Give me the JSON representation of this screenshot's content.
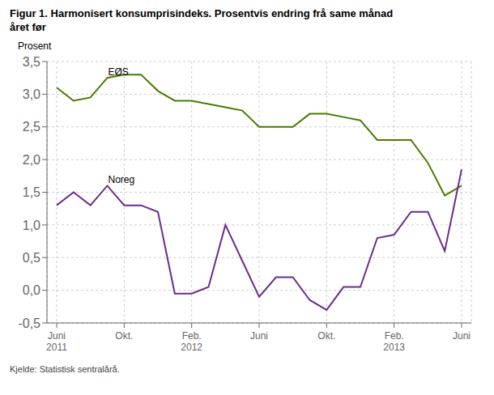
{
  "chart_data": {
    "type": "line",
    "title": "Figur 1. Harmonisert konsumprisindeks. Prosentvis endring frå same månad\nåret før",
    "y_label": "Prosent",
    "source": "Kjelde: Statistisk sentralårå.",
    "categories": [
      "Juni\n2011",
      null,
      null,
      null,
      "Okt.",
      null,
      null,
      null,
      "Feb.\n2012",
      null,
      null,
      null,
      "Juni",
      null,
      null,
      null,
      "Okt.",
      null,
      null,
      null,
      "Feb.\n2013",
      null,
      null,
      null,
      "Juni"
    ],
    "series": [
      {
        "color": "#4a7a00",
        "values": [
          3.1,
          2.9,
          2.95,
          3.25,
          3.3,
          3.3,
          3.05,
          2.9,
          2.9,
          2.85,
          2.8,
          2.75,
          2.5,
          2.5,
          2.5,
          2.7,
          2.7,
          2.65,
          2.6,
          2.3,
          2.3,
          2.3,
          1.95,
          1.45,
          1.6
        ]
      },
      {
        "color": "#6b2d8b",
        "values": [
          1.3,
          1.5,
          1.3,
          1.6,
          1.3,
          1.3,
          1.2,
          -0.05,
          -0.05,
          0.05,
          1.0,
          0.45,
          -0.1,
          0.2,
          0.2,
          -0.15,
          -0.3,
          0.05,
          0.05,
          0.8,
          0.85,
          1.2,
          1.2,
          0.6,
          1.85
        ]
      }
    ],
    "annotations": [
      {
        "text": "EØS",
        "x": 3,
        "y": 3.34
      },
      {
        "text": "Noreg",
        "x": 3,
        "y": 1.69
      }
    ],
    "ylim": [
      -0.5,
      3.5
    ],
    "yticks": [
      {
        "value": -0.5,
        "label": "-0,5"
      },
      {
        "value": 0.0,
        "label": "0,0"
      },
      {
        "value": 0.5,
        "label": "0,5"
      },
      {
        "value": 1.0,
        "label": "1,0"
      },
      {
        "value": 1.5,
        "label": "1,5"
      },
      {
        "value": 2.0,
        "label": "2,0"
      },
      {
        "value": 2.5,
        "label": "2,5"
      },
      {
        "value": 3.0,
        "label": "3,0"
      },
      {
        "value": 3.5,
        "label": "3,5"
      }
    ],
    "grid": true
  }
}
